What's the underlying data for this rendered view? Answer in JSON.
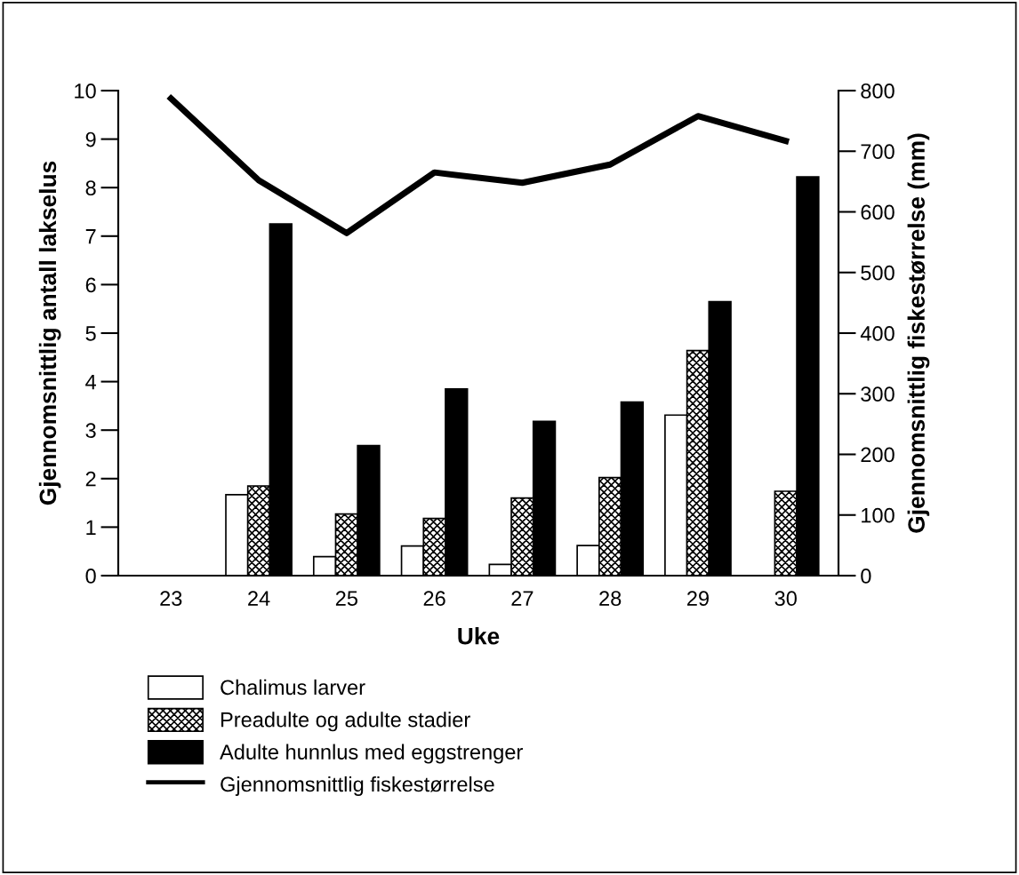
{
  "chart_data": {
    "type": "bar",
    "xlabel": "Uke",
    "ylabel": "Gjennomsnittlig antall lakselus",
    "y2label": "Gjennomsnittlig fiskestørrelse (mm)",
    "categories": [
      "23",
      "24",
      "25",
      "26",
      "27",
      "28",
      "29",
      "30"
    ],
    "series": [
      {
        "name": "Chalimus larver",
        "color": "#ffffff",
        "values": [
          null,
          1.67,
          0.39,
          0.61,
          0.23,
          0.62,
          3.31,
          null
        ]
      },
      {
        "name": "Preadulte og adulte stadier",
        "color": "#000000",
        "values": [
          null,
          1.85,
          1.27,
          1.18,
          1.6,
          2.02,
          4.64,
          1.74
        ]
      },
      {
        "name": "Adulte hunnlus med eggstrenger",
        "color": "#000000",
        "values": [
          null,
          7.25,
          2.68,
          3.85,
          3.18,
          3.58,
          5.65,
          8.22
        ]
      },
      {
        "name": "Gjennomsnittlig fiskestørrelse",
        "type": "line",
        "axis": "y2",
        "color": "#000000",
        "values": [
          787,
          652,
          565,
          665,
          648,
          678,
          758,
          717
        ]
      }
    ],
    "ylim": [
      0,
      10
    ],
    "yticks": [
      0,
      1,
      2,
      3,
      4,
      5,
      6,
      7,
      8,
      9,
      10
    ],
    "y2lim": [
      0,
      800
    ],
    "y2ticks": [
      0,
      100,
      200,
      300,
      400,
      500,
      600,
      700,
      800
    ],
    "grid": false,
    "legend": "bottom",
    "marker": "none",
    "line_style": "solid"
  }
}
